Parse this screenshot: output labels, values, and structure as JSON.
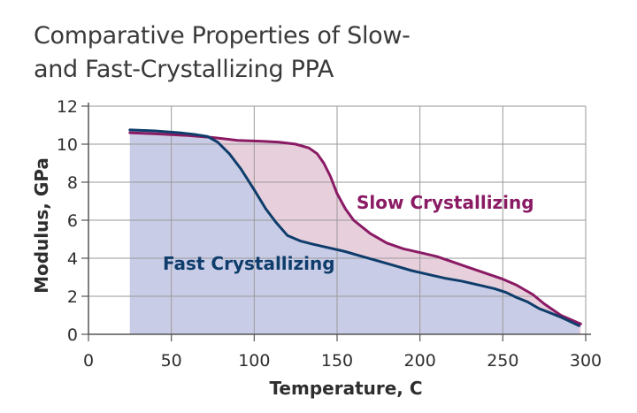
{
  "chart_data": {
    "type": "area",
    "title_lines": [
      "Comparative Properties of Slow-",
      "and Fast-Crystallizing PPA"
    ],
    "xlabel": "Temperature, C",
    "ylabel": "Modulus, GPa",
    "xlim": [
      0,
      300
    ],
    "ylim": [
      0,
      12
    ],
    "xticks": [
      "0",
      "50",
      "100",
      "150",
      "200",
      "250",
      "300"
    ],
    "yticks": [
      "0",
      "2",
      "4",
      "6",
      "8",
      "10",
      "12"
    ],
    "grid": true,
    "series": [
      {
        "name": "Slow Crystallizing",
        "color": "#8a1a64",
        "fill": "#e8cfdc",
        "x": [
          25,
          40,
          60,
          75,
          90,
          105,
          115,
          125,
          133,
          138,
          142,
          146,
          150,
          155,
          160,
          170,
          180,
          190,
          200,
          210,
          220,
          230,
          240,
          250,
          258,
          263,
          268,
          275,
          285,
          297
        ],
        "y": [
          10.6,
          10.55,
          10.45,
          10.35,
          10.2,
          10.15,
          10.1,
          10.0,
          9.8,
          9.5,
          9.0,
          8.3,
          7.4,
          6.6,
          6.0,
          5.3,
          4.8,
          4.5,
          4.3,
          4.1,
          3.8,
          3.5,
          3.2,
          2.9,
          2.6,
          2.35,
          2.1,
          1.6,
          1.0,
          0.55
        ]
      },
      {
        "name": "Fast Crystallizing",
        "color": "#0e3d6b",
        "fill": "#c9cce6",
        "x": [
          25,
          40,
          55,
          65,
          72,
          78,
          85,
          92,
          100,
          107,
          113,
          120,
          128,
          135,
          145,
          155,
          165,
          175,
          185,
          195,
          205,
          215,
          225,
          235,
          245,
          252,
          258,
          265,
          272,
          278,
          285,
          296
        ],
        "y": [
          10.75,
          10.7,
          10.6,
          10.5,
          10.4,
          10.1,
          9.5,
          8.7,
          7.6,
          6.6,
          5.9,
          5.2,
          4.9,
          4.75,
          4.55,
          4.35,
          4.1,
          3.85,
          3.6,
          3.35,
          3.15,
          2.95,
          2.8,
          2.6,
          2.4,
          2.2,
          1.95,
          1.7,
          1.35,
          1.15,
          0.9,
          0.45
        ]
      }
    ]
  }
}
